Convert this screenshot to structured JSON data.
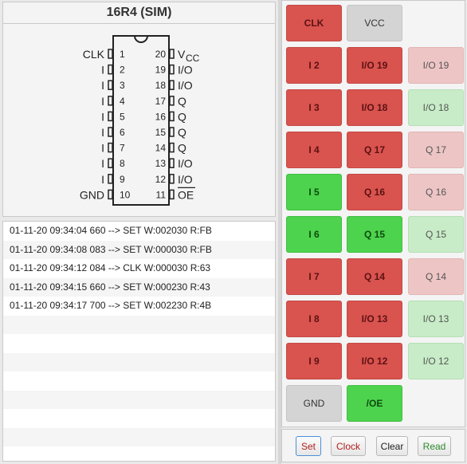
{
  "title": "16R4 (SIM)",
  "chip": {
    "left_pins": [
      {
        "label": "CLK",
        "num": "1"
      },
      {
        "label": "I",
        "num": "2"
      },
      {
        "label": "I",
        "num": "3"
      },
      {
        "label": "I",
        "num": "4"
      },
      {
        "label": "I",
        "num": "5"
      },
      {
        "label": "I",
        "num": "6"
      },
      {
        "label": "I",
        "num": "7"
      },
      {
        "label": "I",
        "num": "8"
      },
      {
        "label": "I",
        "num": "9"
      },
      {
        "label": "GND",
        "num": "10"
      }
    ],
    "right_pins": [
      {
        "label": "V",
        "sub": "CC",
        "num": "20"
      },
      {
        "label": "I/O",
        "num": "19"
      },
      {
        "label": "I/O",
        "num": "18"
      },
      {
        "label": "Q",
        "num": "17"
      },
      {
        "label": "Q",
        "num": "16"
      },
      {
        "label": "Q",
        "num": "15"
      },
      {
        "label": "Q",
        "num": "14"
      },
      {
        "label": "I/O",
        "num": "13"
      },
      {
        "label": "I/O",
        "num": "12"
      },
      {
        "label": "OE",
        "num": "11",
        "overline": true
      }
    ]
  },
  "log": [
    "01-11-20 09:34:04 660 --> SET W:002030 R:FB",
    "01-11-20 09:34:08 083 --> SET W:000030 R:FB",
    "01-11-20 09:34:12 084 --> CLK W:000030 R:63",
    "01-11-20 09:34:15 660 --> SET W:000230 R:43",
    "01-11-20 09:34:17 700 --> SET W:002230 R:4B"
  ],
  "pins": [
    {
      "label": "CLK",
      "state": "red",
      "col": 0,
      "row": 0
    },
    {
      "label": "VCC",
      "state": "gray",
      "col": 1,
      "row": 0
    },
    {
      "label": "I 2",
      "state": "red",
      "col": 0,
      "row": 1
    },
    {
      "label": "I/O 19",
      "state": "red",
      "col": 1,
      "row": 1
    },
    {
      "label": "I/O 19",
      "state": "lred",
      "col": 2,
      "row": 1
    },
    {
      "label": "I 3",
      "state": "red",
      "col": 0,
      "row": 2
    },
    {
      "label": "I/O 18",
      "state": "red",
      "col": 1,
      "row": 2
    },
    {
      "label": "I/O 18",
      "state": "lgreen",
      "col": 2,
      "row": 2
    },
    {
      "label": "I 4",
      "state": "red",
      "col": 0,
      "row": 3
    },
    {
      "label": "Q 17",
      "state": "red",
      "col": 1,
      "row": 3
    },
    {
      "label": "Q 17",
      "state": "lred",
      "col": 2,
      "row": 3
    },
    {
      "label": "I 5",
      "state": "green",
      "col": 0,
      "row": 4
    },
    {
      "label": "Q 16",
      "state": "red",
      "col": 1,
      "row": 4
    },
    {
      "label": "Q 16",
      "state": "lred",
      "col": 2,
      "row": 4
    },
    {
      "label": "I 6",
      "state": "green",
      "col": 0,
      "row": 5
    },
    {
      "label": "Q 15",
      "state": "green",
      "col": 1,
      "row": 5
    },
    {
      "label": "Q 15",
      "state": "lgreen",
      "col": 2,
      "row": 5
    },
    {
      "label": "I 7",
      "state": "red",
      "col": 0,
      "row": 6
    },
    {
      "label": "Q 14",
      "state": "red",
      "col": 1,
      "row": 6
    },
    {
      "label": "Q 14",
      "state": "lred",
      "col": 2,
      "row": 6
    },
    {
      "label": "I 8",
      "state": "red",
      "col": 0,
      "row": 7
    },
    {
      "label": "I/O 13",
      "state": "red",
      "col": 1,
      "row": 7
    },
    {
      "label": "I/O 13",
      "state": "lgreen",
      "col": 2,
      "row": 7
    },
    {
      "label": "I 9",
      "state": "red",
      "col": 0,
      "row": 8
    },
    {
      "label": "I/O 12",
      "state": "red",
      "col": 1,
      "row": 8
    },
    {
      "label": "I/O 12",
      "state": "lgreen",
      "col": 2,
      "row": 8
    },
    {
      "label": "GND",
      "state": "gray",
      "col": 0,
      "row": 9
    },
    {
      "label": "/OE",
      "state": "green",
      "col": 1,
      "row": 9
    }
  ],
  "actions": {
    "set": {
      "label": "Set",
      "color": "#b02020",
      "border": "#4a90d9"
    },
    "clock": {
      "label": "Clock",
      "color": "#b02020"
    },
    "clear": {
      "label": "Clear",
      "color": "#222222"
    },
    "read": {
      "label": "Read",
      "color": "#2e8b2e"
    }
  }
}
